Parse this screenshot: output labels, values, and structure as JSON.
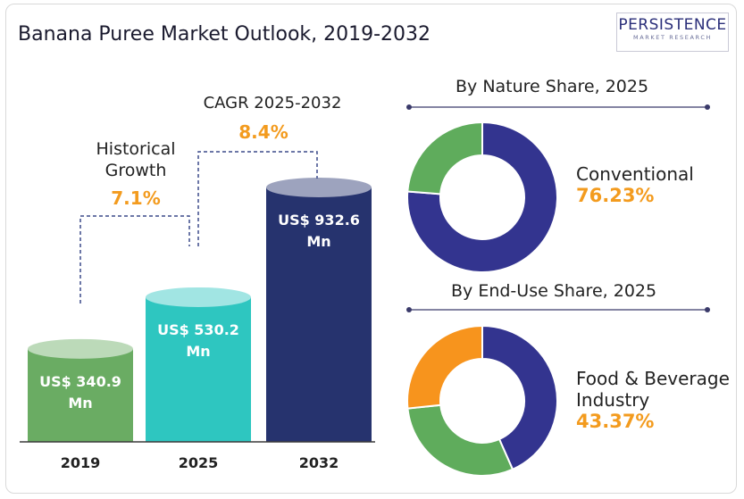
{
  "title": "Banana Puree Market Outlook, 2019-2032",
  "logo": {
    "main": "PERSISTENCE",
    "sub": "MARKET RESEARCH"
  },
  "annotations": {
    "historical_label_1": "Historical",
    "historical_label_2": "Growth",
    "historical_value": "7.1%",
    "cagr_label": "CAGR 2025-2032",
    "cagr_value": "8.4%"
  },
  "colors": {
    "bar_2019": "#6aac63",
    "bar_2025": "#2ec6c0",
    "bar_2032": "#26336e",
    "pie_navy": "#33348f",
    "pie_green": "#5fac5c",
    "pie_orange": "#f7941d",
    "accent": "#f39b1e"
  },
  "chart_data": [
    {
      "type": "bar",
      "categories": [
        "2019",
        "2025",
        "2032"
      ],
      "values": [
        340.9,
        530.2,
        932.6
      ],
      "data_labels": [
        [
          "US$ 340.9",
          "Mn"
        ],
        [
          "US$ 530.2",
          "Mn"
        ],
        [
          "US$ 932.6",
          "Mn"
        ]
      ],
      "title": "",
      "xlabel": "",
      "ylabel": ""
    },
    {
      "type": "pie",
      "title": "By Nature Share, 2025",
      "slices": [
        {
          "label": "Conventional",
          "value": 76.23,
          "color": "#33348f"
        },
        {
          "label": "",
          "value": 23.77,
          "color": "#5fac5c"
        }
      ],
      "highlight_label": "Conventional",
      "highlight_value": "76.23%"
    },
    {
      "type": "pie",
      "title": "By End-Use Share, 2025",
      "slices": [
        {
          "label": "Food & Beverage Industry",
          "value": 43.37,
          "color": "#33348f"
        },
        {
          "label": "",
          "value": 30.0,
          "color": "#5fac5c"
        },
        {
          "label": "",
          "value": 26.63,
          "color": "#f7941d"
        }
      ],
      "highlight_label_1": "Food & Beverage",
      "highlight_label_2": "Industry",
      "highlight_value": "43.37%"
    }
  ]
}
